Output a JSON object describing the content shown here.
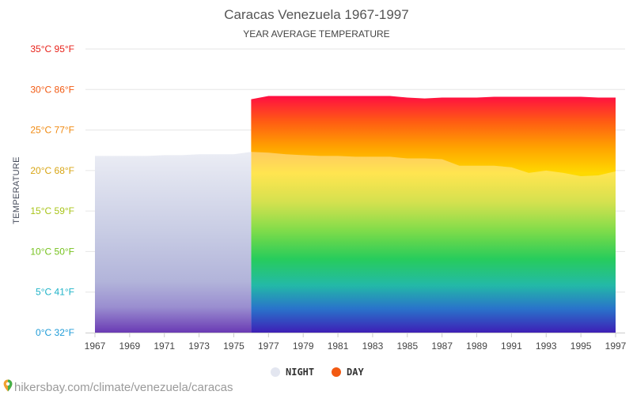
{
  "chart_data": {
    "type": "area",
    "title": "Caracas Venezuela 1967-1997",
    "subtitle": "YEAR AVERAGE TEMPERATURE",
    "ylabel": "TEMPERATURE",
    "xlabel": "",
    "ylim": [
      0,
      35
    ],
    "xlim": [
      1967,
      1997
    ],
    "grid": true,
    "legend_position": "bottom-center",
    "y_ticks": [
      {
        "value": 0,
        "label": "0°C 32°F",
        "color": "#1e9bd7"
      },
      {
        "value": 5,
        "label": "5°C 41°F",
        "color": "#1fb3c8"
      },
      {
        "value": 10,
        "label": "10°C 50°F",
        "color": "#76c21e"
      },
      {
        "value": 15,
        "label": "15°C 59°F",
        "color": "#a9c41a"
      },
      {
        "value": 20,
        "label": "20°C 68°F",
        "color": "#d8a514"
      },
      {
        "value": 25,
        "label": "25°C 77°F",
        "color": "#f08a12"
      },
      {
        "value": 30,
        "label": "30°C 86°F",
        "color": "#f25a12"
      },
      {
        "value": 35,
        "label": "35°C 95°F",
        "color": "#e8221a"
      }
    ],
    "x_ticks": [
      "1967",
      "1969",
      "1971",
      "1973",
      "1975",
      "1977",
      "1979",
      "1981",
      "1983",
      "1985",
      "1987",
      "1989",
      "1991",
      "1993",
      "1995",
      "1997"
    ],
    "series": [
      {
        "name": "NIGHT",
        "color": "#e3e6f0",
        "points": [
          [
            1967,
            21.8
          ],
          [
            1968,
            21.8
          ],
          [
            1969,
            21.8
          ],
          [
            1970,
            21.8
          ],
          [
            1971,
            21.9
          ],
          [
            1972,
            21.9
          ],
          [
            1973,
            22.0
          ],
          [
            1974,
            22.0
          ],
          [
            1975,
            22.0
          ],
          [
            1976,
            22.3
          ],
          [
            1977,
            22.2
          ],
          [
            1978,
            22.0
          ],
          [
            1979,
            21.9
          ],
          [
            1980,
            21.8
          ],
          [
            1981,
            21.8
          ],
          [
            1982,
            21.7
          ],
          [
            1983,
            21.7
          ],
          [
            1984,
            21.7
          ],
          [
            1985,
            21.5
          ],
          [
            1986,
            21.5
          ],
          [
            1987,
            21.4
          ],
          [
            1988,
            20.6
          ],
          [
            1989,
            20.6
          ],
          [
            1990,
            20.6
          ],
          [
            1991,
            20.4
          ],
          [
            1992,
            19.7
          ],
          [
            1993,
            20.0
          ],
          [
            1994,
            19.7
          ],
          [
            1995,
            19.3
          ],
          [
            1996,
            19.4
          ],
          [
            1997,
            19.9
          ]
        ]
      },
      {
        "name": "DAY",
        "color": "#f25a12",
        "points": [
          [
            1976,
            28.8
          ],
          [
            1977,
            29.2
          ],
          [
            1978,
            29.2
          ],
          [
            1979,
            29.2
          ],
          [
            1980,
            29.2
          ],
          [
            1981,
            29.2
          ],
          [
            1982,
            29.2
          ],
          [
            1983,
            29.2
          ],
          [
            1984,
            29.2
          ],
          [
            1985,
            29.0
          ],
          [
            1986,
            28.9
          ],
          [
            1987,
            29.0
          ],
          [
            1988,
            29.0
          ],
          [
            1989,
            29.0
          ],
          [
            1990,
            29.1
          ],
          [
            1991,
            29.1
          ],
          [
            1992,
            29.1
          ],
          [
            1993,
            29.1
          ],
          [
            1994,
            29.1
          ],
          [
            1995,
            29.1
          ],
          [
            1996,
            29.0
          ],
          [
            1997,
            29.0
          ]
        ]
      }
    ]
  },
  "source": {
    "icon": "map-pin-icon",
    "url_text": "hikersbay.com/climate/venezuela/caracas"
  }
}
